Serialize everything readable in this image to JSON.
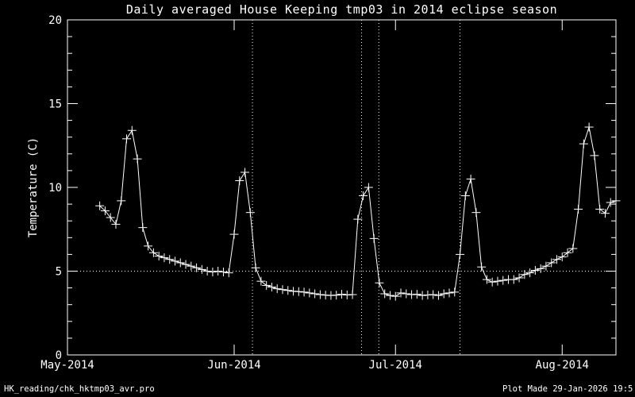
{
  "title": "Daily averaged House Keeping tmp03 in 2014 eclipse season",
  "footer": {
    "left": "HK_reading/chk_hktmp03_avr.pro",
    "right": "Plot Made 29-Jan-2026 19:5"
  },
  "colors": {
    "background": "#000000",
    "foreground": "#ffffff"
  },
  "chart_data": {
    "type": "line",
    "title": "Daily averaged House Keeping tmp03 in 2014 eclipse season",
    "xlabel": "",
    "ylabel": "Temperature (C)",
    "ylim": [
      0,
      20
    ],
    "y_major_ticks": [
      0,
      5,
      10,
      15,
      20
    ],
    "y_minor_step": 1,
    "grid": "off",
    "legend": "none",
    "marker": "plus",
    "x_axis": {
      "tick_labels": [
        "May-2014",
        "Jun-2014",
        "Jul-2014",
        "Aug-2014"
      ],
      "tick_days": [
        0,
        31,
        61,
        92
      ],
      "total_days": 102,
      "start_date": "2014-05-01"
    },
    "reference_lines": {
      "hline_y": 5,
      "vline_days": [
        34.4,
        54.7,
        57.9,
        73.0
      ],
      "style": "dotted"
    },
    "series": [
      {
        "name": "tmp03 daily average",
        "start_day": 6,
        "start_date": "2014-05-07",
        "values": [
          8.9,
          8.6,
          8.2,
          7.8,
          9.2,
          12.9,
          13.4,
          11.7,
          7.6,
          6.5,
          6.1,
          5.9,
          5.8,
          5.7,
          5.6,
          5.5,
          5.4,
          5.3,
          5.2,
          5.1,
          5.0,
          4.95,
          5.0,
          4.95,
          4.9,
          7.2,
          10.4,
          10.9,
          8.5,
          5.2,
          4.4,
          4.15,
          4.05,
          3.95,
          3.9,
          3.85,
          3.8,
          3.78,
          3.75,
          3.7,
          3.65,
          3.6,
          3.57,
          3.55,
          3.57,
          3.62,
          3.58,
          3.6,
          8.1,
          9.5,
          10.0,
          6.95,
          4.3,
          3.65,
          3.55,
          3.5,
          3.7,
          3.65,
          3.6,
          3.62,
          3.55,
          3.58,
          3.6,
          3.55,
          3.65,
          3.7,
          3.75,
          6.0,
          9.5,
          10.5,
          8.5,
          5.25,
          4.5,
          4.35,
          4.4,
          4.45,
          4.5,
          4.5,
          4.6,
          4.8,
          4.9,
          5.05,
          5.15,
          5.3,
          5.5,
          5.7,
          5.85,
          6.1,
          6.35,
          8.7,
          12.6,
          13.6,
          11.9,
          8.7,
          8.45,
          9.1,
          9.2
        ]
      }
    ]
  }
}
